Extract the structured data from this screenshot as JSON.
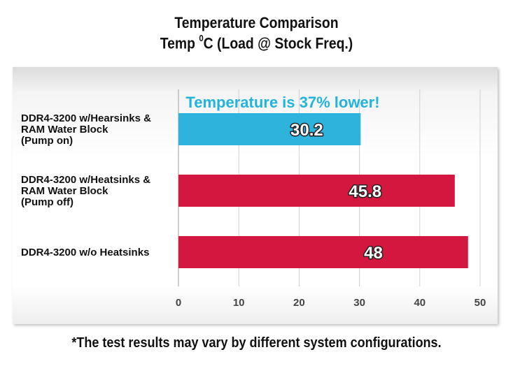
{
  "chart_data": {
    "type": "bar",
    "orientation": "horizontal",
    "title": "Temperature Comparison",
    "subtitle_parts": [
      "Temp ",
      "0",
      "C (Load @ Stock Freq.)"
    ],
    "categories": [
      [
        "DDR4-3200 w/Hearsinks &",
        "RAM Water Block",
        "(Pump on)"
      ],
      [
        "DDR4-3200 w/Heatsinks &",
        "RAM Water Block",
        "(Pump off)"
      ],
      [
        "DDR4-3200 w/o Heatsinks"
      ]
    ],
    "values": [
      30.2,
      45.8,
      48
    ],
    "value_labels": [
      "30.2",
      "45.8",
      "48"
    ],
    "bar_colors": [
      "#2eb3dc",
      "#d4173f",
      "#d4173f"
    ],
    "xlim": [
      0,
      50
    ],
    "xticks": [
      0,
      10,
      20,
      30,
      40,
      50
    ],
    "grid": true,
    "annotation": "Temperature is 37% lower!",
    "annotation_color": "#22b4dc"
  },
  "footnote": "*The test results may vary by different system configurations."
}
